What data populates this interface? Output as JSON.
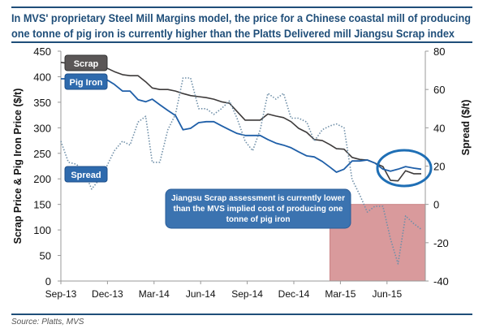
{
  "title_lines": [
    "In MVS' proprietary Steel Mill Margins model, the price for a Chinese coastal mill of producing",
    "one tonne of pig iron is currently higher than the Platts Delivered mill Jiangsu Scrap index"
  ],
  "source": "Source: Platts, MVS",
  "colors": {
    "scrap": "#3d3a3a",
    "pig_iron": "#1f5fa8",
    "spread": "#6f8fa8",
    "highlight": "#d99a9c",
    "rule": "#1f4e79",
    "annotation": "#3b73b0",
    "circle": "#1f6fb5"
  },
  "chart_data": {
    "type": "line",
    "xlabel": "",
    "ylabel": "Scrap Price & Pig Iron Price ($/t)",
    "y2label": "Spread ($/t)",
    "ylim": [
      0,
      450
    ],
    "y2lim": [
      -40,
      80
    ],
    "yticks": [
      0,
      50,
      100,
      150,
      200,
      250,
      300,
      350,
      400,
      450
    ],
    "y2ticks": [
      -40,
      -20,
      0,
      20,
      40,
      60,
      80
    ],
    "xticks": [
      "Sep-13",
      "Dec-13",
      "Mar-14",
      "Jun-14",
      "Sep-14",
      "Dec-14",
      "Mar-15",
      "Jun-15"
    ],
    "xrange": [
      "2013-09-01",
      "2015-08-24"
    ],
    "grid": false,
    "x": [
      "2013-09-01",
      "2013-09-16",
      "2013-10-01",
      "2013-10-16",
      "2013-11-01",
      "2013-11-16",
      "2013-12-01",
      "2013-12-16",
      "2014-01-01",
      "2014-01-16",
      "2014-02-01",
      "2014-02-16",
      "2014-03-01",
      "2014-03-16",
      "2014-04-01",
      "2014-04-16",
      "2014-05-01",
      "2014-05-16",
      "2014-06-01",
      "2014-06-16",
      "2014-07-01",
      "2014-07-16",
      "2014-08-01",
      "2014-08-16",
      "2014-09-01",
      "2014-09-16",
      "2014-10-01",
      "2014-10-16",
      "2014-11-01",
      "2014-11-16",
      "2014-12-01",
      "2014-12-16",
      "2015-01-01",
      "2015-01-16",
      "2015-02-01",
      "2015-02-16",
      "2015-03-01",
      "2015-03-16",
      "2015-04-01",
      "2015-04-16",
      "2015-05-01",
      "2015-05-16",
      "2015-06-01",
      "2015-06-16",
      "2015-07-01",
      "2015-07-16",
      "2015-08-01",
      "2015-08-16"
    ],
    "series": [
      {
        "name": "Scrap",
        "axis": "left",
        "style": "solid",
        "values": [
          428,
          426,
          423,
          421,
          420,
          420,
          417,
          410,
          404,
          402,
          402,
          390,
          378,
          375,
          375,
          372,
          367,
          363,
          361,
          359,
          356,
          351,
          348,
          332,
          315,
          315,
          315,
          327,
          323,
          320,
          312,
          299,
          291,
          277,
          275,
          267,
          259,
          258,
          242,
          238,
          237,
          231,
          224,
          197,
          196,
          216,
          210,
          210
        ]
      },
      {
        "name": "Pig Iron",
        "axis": "left",
        "style": "solid",
        "values": [
          396,
          396,
          396,
          396,
          394,
          394,
          394,
          385,
          372,
          372,
          355,
          351,
          356,
          345,
          334,
          324,
          296,
          299,
          310,
          312,
          312,
          304,
          296,
          289,
          285,
          285,
          285,
          277,
          270,
          266,
          261,
          253,
          245,
          243,
          234,
          223,
          213,
          219,
          235,
          235,
          237,
          231,
          219,
          215,
          219,
          224,
          221,
          219
        ]
      },
      {
        "name": "Spread",
        "axis": "right",
        "style": "dotted",
        "values": [
          33,
          22,
          21,
          18,
          8,
          13,
          20,
          28,
          33,
          31,
          43,
          46,
          22,
          22,
          39,
          47,
          66,
          66,
          50,
          50,
          47,
          50,
          54,
          45,
          33,
          28,
          39,
          58,
          55,
          58,
          45,
          45,
          43,
          33,
          39,
          41,
          42,
          40,
          13,
          5,
          -4,
          -1,
          -1,
          -18,
          -31,
          -6,
          -10,
          -13
        ]
      }
    ],
    "highlight_region": {
      "x": [
        "2015-02-16",
        "2015-08-24"
      ],
      "y2": [
        -40,
        0
      ]
    },
    "annotation": "Jiangsu Scrap assessment is currently lower than the MVS implied cost of producing one tonne of pig iron",
    "annotation_lines": [
      "Jiangsu Scrap assessment is currently lower",
      "than the MVS implied cost of producing one",
      "tonne of pig iron"
    ],
    "circled_region": [
      "2015-06-01",
      "2015-08-24"
    ]
  }
}
